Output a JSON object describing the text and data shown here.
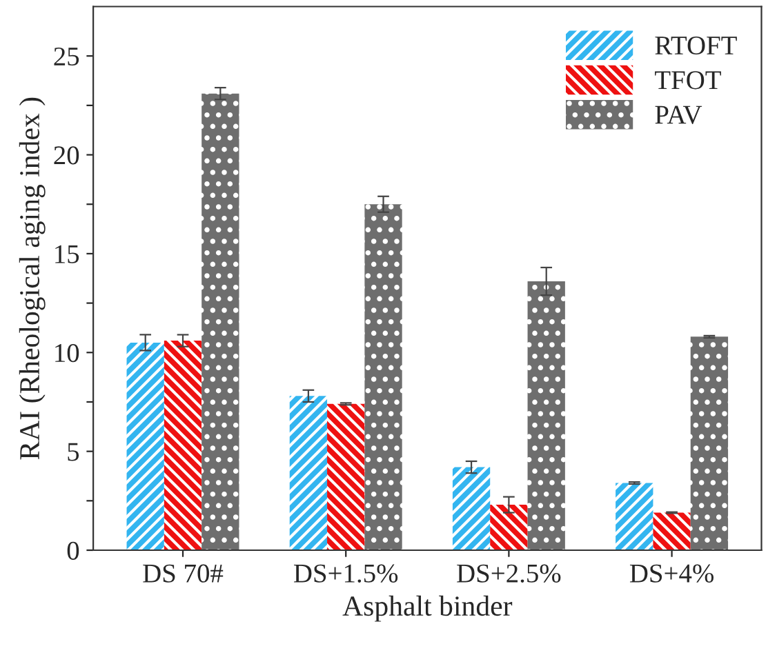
{
  "chart_data": {
    "type": "bar",
    "xlabel": "Asphalt binder",
    "ylabel": "RAI (Rheological aging index )",
    "categories": [
      "DS 70#",
      "DS+1.5%",
      "DS+2.5%",
      "DS+4%"
    ],
    "series": [
      {
        "name": "RTOFT",
        "color": "#33b5f0",
        "values": [
          10.5,
          7.8,
          4.2,
          3.4
        ],
        "errors": [
          0.4,
          0.3,
          0.3,
          0.05
        ]
      },
      {
        "name": "TFOT",
        "color": "#ee1111",
        "values": [
          10.6,
          7.4,
          2.3,
          1.9
        ],
        "errors": [
          0.3,
          0.05,
          0.4,
          0.03
        ]
      },
      {
        "name": "PAV",
        "color": "#6e6e6e",
        "values": [
          23.1,
          17.5,
          13.6,
          10.8
        ],
        "errors": [
          0.3,
          0.4,
          0.7,
          0.05
        ]
      }
    ],
    "ylim": [
      0,
      27.5
    ],
    "yticks": [
      0,
      {
        "value": 2.5,
        "label": null
      },
      5,
      {
        "value": 7.5,
        "label": null
      },
      10,
      {
        "value": 12.5,
        "label": null
      },
      15,
      {
        "value": 17.5,
        "label": null
      },
      20,
      {
        "value": 22.5,
        "label": null
      },
      25
    ],
    "legend": "top right",
    "grid": false
  }
}
